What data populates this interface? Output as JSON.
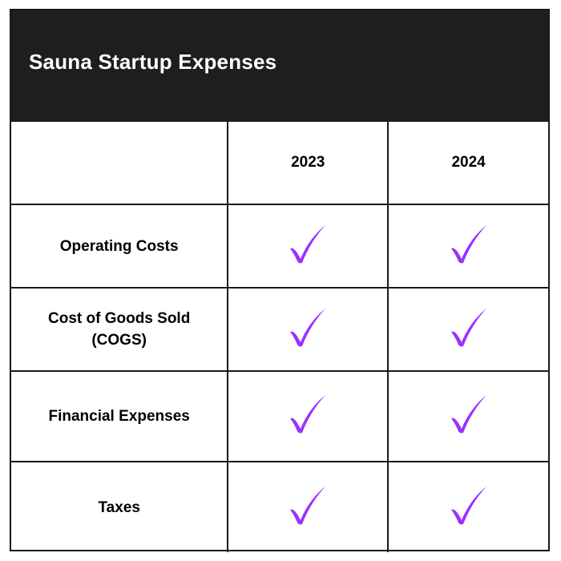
{
  "header": {
    "title": "Sauna Startup Expenses"
  },
  "columns": [
    "",
    "2023",
    "2024"
  ],
  "rows": [
    {
      "label": "Operating Costs",
      "y2023": "check",
      "y2024": "check"
    },
    {
      "label": "Cost of Goods Sold (COGS)",
      "y2023": "check",
      "y2024": "check"
    },
    {
      "label": "Financial Expenses",
      "y2023": "check",
      "y2024": "check"
    },
    {
      "label": "Taxes",
      "y2023": "check",
      "y2024": "check"
    }
  ],
  "colors": {
    "header_bg": "#1e1e1e",
    "header_text": "#ffffff",
    "check_color": "#9b30ff",
    "border": "#1a1a1a"
  },
  "icons": {
    "check": "checkmark-icon"
  }
}
